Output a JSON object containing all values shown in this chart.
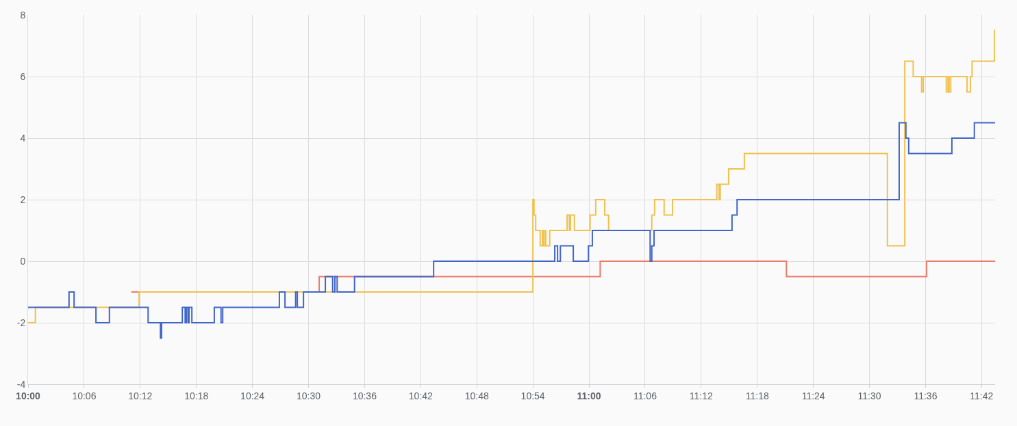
{
  "chart_data": {
    "type": "step",
    "xlim": [
      10,
      11.724
    ],
    "xticks": [
      {
        "value": 10,
        "label": "10:00"
      },
      {
        "value": 10.1,
        "label": "10:06"
      },
      {
        "value": 10.2,
        "label": "10:12"
      },
      {
        "value": 10.3,
        "label": "10:18"
      },
      {
        "value": 10.4,
        "label": "10:24"
      },
      {
        "value": 10.5,
        "label": "10:30"
      },
      {
        "value": 10.6,
        "label": "10:36"
      },
      {
        "value": 10.7,
        "label": "10:42"
      },
      {
        "value": 10.8,
        "label": "10:48"
      },
      {
        "value": 10.9,
        "label": "10:54"
      },
      {
        "value": 11,
        "label": "11:00"
      },
      {
        "value": 11.1,
        "label": "11:06"
      },
      {
        "value": 11.2,
        "label": "11:12"
      },
      {
        "value": 11.3,
        "label": "11:18"
      },
      {
        "value": 11.4,
        "label": "11:24"
      },
      {
        "value": 11.5,
        "label": "11:30"
      },
      {
        "value": 11.6,
        "label": "11:36"
      },
      {
        "value": 11.7,
        "label": "11:42"
      }
    ],
    "ylim": [
      -4,
      8
    ],
    "yticks": [
      -4,
      -2,
      0,
      2,
      4,
      6,
      8
    ],
    "grid": true,
    "marker": "none",
    "line_style": "solid",
    "series": [
      {
        "color": "#ea7b6b",
        "x": [
          10.184,
          10.519,
          11.02,
          11.352,
          11.602,
          11.724
        ],
        "values": [
          -1,
          -0.5,
          0,
          -0.5,
          0,
          0
        ]
      },
      {
        "color": "#f0c150",
        "x": [
          10,
          10.013,
          10.198,
          10.9,
          10.902,
          10.905,
          10.913,
          10.917,
          10.919,
          10.922,
          10.923,
          10.93,
          10.961,
          10.965,
          10.967,
          10.974,
          11.002,
          11.012,
          11.028,
          11.035,
          11.112,
          11.117,
          11.134,
          11.149,
          11.228,
          11.232,
          11.234,
          11.249,
          11.277,
          11.532,
          11.563,
          11.578,
          11.593,
          11.596,
          11.637,
          11.64,
          11.642,
          11.645,
          11.674,
          11.68,
          11.683,
          11.723,
          11.724
        ],
        "values": [
          -2,
          -1.5,
          -1,
          2,
          1.5,
          1,
          0.5,
          1,
          0.5,
          1,
          0.5,
          1,
          1.5,
          1,
          1.5,
          1,
          1.5,
          2,
          1.5,
          1,
          1.5,
          2,
          1.5,
          2,
          2.5,
          2,
          2.5,
          3,
          3.5,
          0.5,
          6.5,
          6,
          5.5,
          6,
          5.5,
          6,
          5.5,
          6,
          5.5,
          6,
          6.5,
          7.5,
          7.5
        ]
      },
      {
        "color": "#4166c8",
        "x": [
          10,
          10.073,
          10.082,
          10.121,
          10.145,
          10.214,
          10.236,
          10.238,
          10.275,
          10.28,
          10.282,
          10.285,
          10.287,
          10.292,
          10.332,
          10.344,
          10.347,
          10.448,
          10.458,
          10.477,
          10.48,
          10.491,
          10.53,
          10.543,
          10.547,
          10.551,
          10.582,
          10.723,
          10.939,
          10.944,
          10.949,
          10.972,
          10.999,
          11.006,
          11.109,
          11.112,
          11.116,
          11.255,
          11.264,
          11.553,
          11.565,
          11.57,
          11.647,
          11.687,
          11.724
        ],
        "values": [
          -1.5,
          -1,
          -1.5,
          -2,
          -1.5,
          -2,
          -2.5,
          -2,
          -1.5,
          -2,
          -1.5,
          -2,
          -1.5,
          -2,
          -1.5,
          -2,
          -1.5,
          -1,
          -1.5,
          -1,
          -1.5,
          -1,
          -0.5,
          -1,
          -0.5,
          -1,
          -0.5,
          0,
          0.5,
          0,
          0.5,
          0,
          0.5,
          1,
          0,
          0.5,
          1,
          1.5,
          2,
          4.5,
          4,
          3.5,
          4,
          4.5,
          4.5
        ]
      }
    ]
  }
}
